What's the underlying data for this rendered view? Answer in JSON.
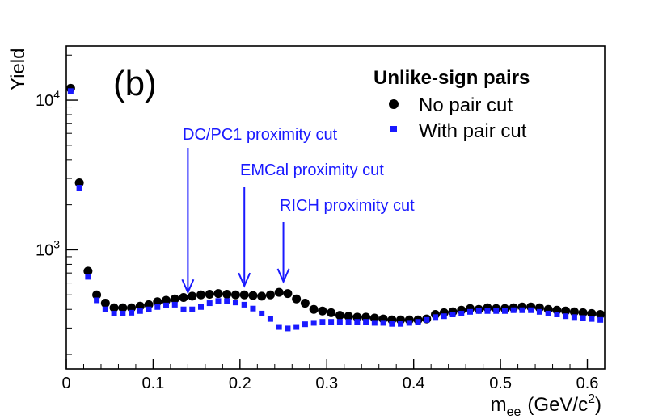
{
  "chart_data": {
    "type": "scatter",
    "panel_label": "(b)",
    "xlabel": "m",
    "xlabel_sub": "ee",
    "xlabel_units": "(GeV/c",
    "xlabel_units_sup": "2",
    "xlabel_units_close": ")",
    "ylabel": "Yield",
    "xlim": [
      0,
      0.62
    ],
    "ylim": [
      160,
      23000
    ],
    "yscale": "log",
    "xticks": [
      "0",
      "0.1",
      "0.2",
      "0.3",
      "0.4",
      "0.5",
      "0.6"
    ],
    "xtick_values": [
      0,
      0.1,
      0.2,
      0.3,
      0.4,
      0.5,
      0.6
    ],
    "yticks": [
      {
        "value": 10000,
        "base": "10",
        "exp": "4"
      },
      {
        "value": 1000,
        "base": "10",
        "exp": "3"
      }
    ],
    "legend": {
      "title": "Unlike-sign pairs",
      "position": "top-right",
      "entries": [
        {
          "label": "No pair cut",
          "marker": "circle",
          "color": "#000000"
        },
        {
          "label": "With pair cut",
          "marker": "square",
          "color": "#1a1aff"
        }
      ]
    },
    "annotations": [
      {
        "text": "DC/PC1 proximity cut",
        "x": 0.14,
        "y_tip": 470,
        "color": "#1a1aff"
      },
      {
        "text": "EMCal proximity cut",
        "x": 0.205,
        "y_tip": 520,
        "color": "#1a1aff"
      },
      {
        "text": "RICH proximity cut",
        "x": 0.25,
        "y_tip": 555,
        "color": "#1a1aff"
      }
    ],
    "x": [
      0.005,
      0.015,
      0.025,
      0.035,
      0.045,
      0.055,
      0.065,
      0.075,
      0.085,
      0.095,
      0.105,
      0.115,
      0.125,
      0.135,
      0.145,
      0.155,
      0.165,
      0.175,
      0.185,
      0.195,
      0.205,
      0.215,
      0.225,
      0.235,
      0.245,
      0.255,
      0.265,
      0.275,
      0.285,
      0.295,
      0.305,
      0.315,
      0.325,
      0.335,
      0.345,
      0.355,
      0.365,
      0.375,
      0.385,
      0.395,
      0.405,
      0.415,
      0.425,
      0.435,
      0.445,
      0.455,
      0.465,
      0.475,
      0.485,
      0.495,
      0.505,
      0.515,
      0.525,
      0.535,
      0.545,
      0.555,
      0.565,
      0.575,
      0.585,
      0.595,
      0.605,
      0.615
    ],
    "series": [
      {
        "name": "No pair cut",
        "marker": "circle",
        "color": "#000000",
        "values": [
          12000,
          2800,
          720,
          500,
          440,
          410,
          410,
          410,
          420,
          430,
          450,
          460,
          470,
          480,
          490,
          500,
          505,
          510,
          505,
          500,
          500,
          495,
          490,
          500,
          520,
          510,
          470,
          440,
          400,
          390,
          380,
          365,
          360,
          355,
          355,
          350,
          345,
          340,
          340,
          340,
          340,
          345,
          370,
          380,
          385,
          395,
          405,
          400,
          410,
          405,
          405,
          410,
          415,
          415,
          410,
          400,
          395,
          390,
          385,
          380,
          375,
          370
        ]
      },
      {
        "name": "With pair cut",
        "marker": "square",
        "color": "#1a1aff",
        "values": [
          11500,
          2600,
          660,
          460,
          400,
          375,
          375,
          380,
          390,
          400,
          415,
          425,
          430,
          400,
          400,
          415,
          440,
          455,
          455,
          445,
          430,
          405,
          375,
          345,
          305,
          298,
          305,
          318,
          325,
          330,
          330,
          330,
          330,
          330,
          330,
          325,
          325,
          320,
          320,
          325,
          330,
          340,
          355,
          360,
          370,
          375,
          385,
          390,
          390,
          390,
          390,
          395,
          395,
          395,
          385,
          375,
          370,
          360,
          355,
          350,
          345,
          340
        ]
      }
    ]
  }
}
